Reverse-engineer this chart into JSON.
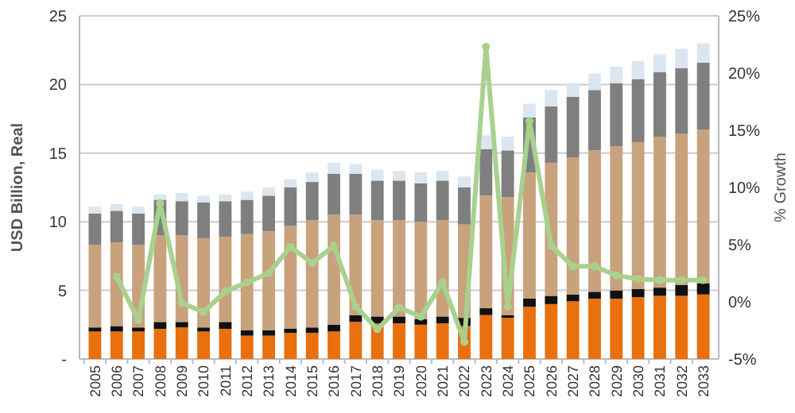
{
  "chart_data": {
    "type": "bar",
    "stacked": true,
    "ylabel": "USD Billion, Real",
    "y2label": "% Growth",
    "categories": [
      "2005",
      "2006",
      "2007",
      "2008",
      "2009",
      "2010",
      "2011",
      "2012",
      "2013",
      "2014",
      "2015",
      "2016",
      "2017",
      "2018",
      "2019",
      "2020",
      "2021",
      "2022",
      "2023",
      "2024",
      "2025",
      "2026",
      "2027",
      "2028",
      "2029",
      "2030",
      "2031",
      "2032",
      "2033"
    ],
    "series": [
      {
        "color": "#e8700e",
        "values": [
          2.0,
          2.0,
          2.0,
          2.2,
          2.3,
          2.0,
          2.2,
          1.7,
          1.7,
          1.9,
          1.9,
          2.0,
          2.7,
          2.6,
          2.6,
          2.5,
          2.6,
          2.4,
          3.2,
          3.0,
          3.8,
          4.0,
          4.2,
          4.4,
          4.4,
          4.5,
          4.6,
          4.6,
          4.7
        ]
      },
      {
        "color": "#111111",
        "values": [
          0.3,
          0.4,
          0.3,
          0.5,
          0.4,
          0.3,
          0.5,
          0.4,
          0.4,
          0.3,
          0.4,
          0.5,
          0.5,
          0.5,
          0.5,
          0.4,
          0.5,
          0.6,
          0.5,
          0.2,
          0.6,
          0.6,
          0.5,
          0.5,
          0.6,
          0.6,
          0.6,
          0.8,
          0.8
        ]
      },
      {
        "color": "#c8a27c",
        "values": [
          6.0,
          6.1,
          6.0,
          6.3,
          6.3,
          6.5,
          6.2,
          7.0,
          7.2,
          7.5,
          7.8,
          8.0,
          7.3,
          7.0,
          7.0,
          7.1,
          7.0,
          6.8,
          8.2,
          8.6,
          9.2,
          9.7,
          10.0,
          10.3,
          10.5,
          10.7,
          11.0,
          11.0,
          11.2
        ]
      },
      {
        "color": "#7f7f7f",
        "values": [
          2.3,
          2.3,
          2.3,
          2.6,
          2.5,
          2.6,
          2.6,
          2.5,
          2.6,
          2.8,
          2.8,
          3.0,
          3.0,
          2.9,
          2.9,
          2.8,
          2.9,
          2.7,
          3.4,
          3.4,
          4.0,
          4.1,
          4.4,
          4.4,
          4.6,
          4.6,
          4.7,
          4.8,
          4.9
        ]
      },
      {
        "color": "#dce6f0",
        "values": [
          0.5,
          0.5,
          0.5,
          0.4,
          0.6,
          0.5,
          0.5,
          0.6,
          0.6,
          0.6,
          0.7,
          0.8,
          0.7,
          0.8,
          0.7,
          0.8,
          0.7,
          0.8,
          1.0,
          1.0,
          1.0,
          1.2,
          1.0,
          1.2,
          1.2,
          1.3,
          1.3,
          1.4,
          1.4
        ]
      },
      {
        "type": "line",
        "axis": "y2",
        "color": "#a9d18e",
        "values": [
          null,
          2.2,
          -1.6,
          8.6,
          -0.1,
          -0.9,
          0.9,
          1.7,
          2.5,
          4.8,
          3.4,
          4.9,
          -0.4,
          -2.4,
          -0.5,
          -1.3,
          1.7,
          -3.5,
          22.3,
          -0.4,
          15.8,
          4.9,
          3.1,
          3.1,
          2.3,
          2.0,
          1.9,
          1.9,
          1.9
        ]
      }
    ],
    "ylim": [
      0,
      25
    ],
    "yticks": [
      {
        "value": 0,
        "label": "-"
      },
      5,
      10,
      15,
      20,
      25
    ],
    "y2lim": [
      -5,
      25
    ],
    "y2ticks": [
      {
        "value": -5,
        "label": "-5%"
      },
      {
        "value": 0,
        "label": "0%"
      },
      {
        "value": 5,
        "label": "5%"
      },
      {
        "value": 10,
        "label": "10%"
      },
      {
        "value": 15,
        "label": "15%"
      },
      {
        "value": 20,
        "label": "20%"
      },
      {
        "value": 25,
        "label": "25%"
      }
    ],
    "grid": "y",
    "marker": "circle"
  }
}
